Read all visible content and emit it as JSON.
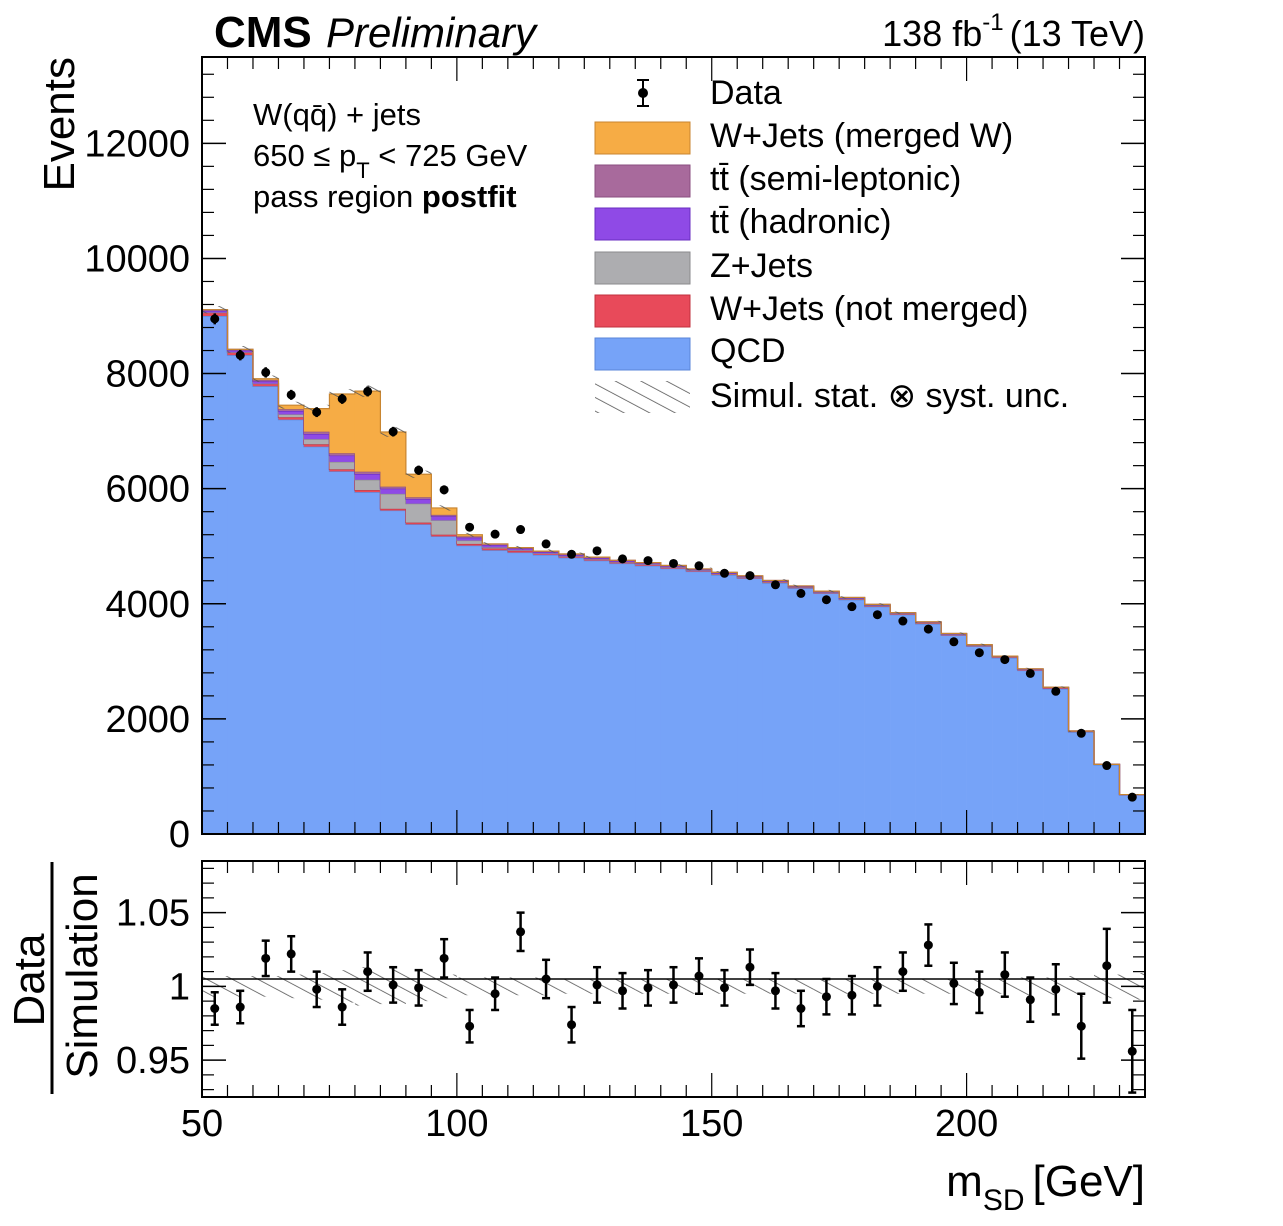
{
  "header": {
    "cms": "CMS",
    "preliminary": "Preliminary",
    "lumi_value": "138 fb",
    "lumi_exp": "-1",
    "energy": "(13 TeV)"
  },
  "info": {
    "line1": "W(qq̄) + jets",
    "line2_a": "650 ≤ p",
    "line2_sub": "T",
    "line2_b": " < 725 GeV",
    "line3_a": "pass region ",
    "line3_b": "postfit"
  },
  "legend": [
    {
      "key": "data",
      "label": "Data"
    },
    {
      "key": "wmerged",
      "label": "W+Jets (merged W)"
    },
    {
      "key": "ttsemi",
      "label": "tt̄ (semi-leptonic)"
    },
    {
      "key": "tthad",
      "label": "tt̄ (hadronic)"
    },
    {
      "key": "zjets",
      "label": "Z+Jets"
    },
    {
      "key": "wnot",
      "label": "W+Jets (not merged)"
    },
    {
      "key": "qcd",
      "label": "QCD"
    },
    {
      "key": "unc",
      "label": "Simul. stat. ⊗ syst. unc."
    }
  ],
  "colors": {
    "qcd": "#76a3f8",
    "wnot": "#e84a5a",
    "zjets": "#adadb0",
    "tthad": "#8f4ae6",
    "ttsemi": "#a86a9c",
    "wmerged": "#f6ac45"
  },
  "chart_data": [
    {
      "type": "bar",
      "title": "",
      "xlabel": "m_SD [GeV]",
      "ylabel": "Events",
      "xlim": [
        50,
        235
      ],
      "ylim": [
        0,
        13500
      ],
      "yticks": [
        0,
        2000,
        4000,
        6000,
        8000,
        10000,
        12000
      ],
      "ytick_labels": [
        "0",
        "2000",
        "4000",
        "6000",
        "8000",
        "10000",
        "12000"
      ],
      "bin_edges": [
        50,
        55,
        60,
        65,
        70,
        75,
        80,
        85,
        90,
        95,
        100,
        105,
        110,
        115,
        120,
        125,
        130,
        135,
        140,
        145,
        150,
        155,
        160,
        165,
        170,
        175,
        180,
        185,
        190,
        195,
        200,
        205,
        210,
        215,
        220,
        225,
        230,
        235
      ],
      "stack_order": [
        "qcd",
        "wnot",
        "zjets",
        "tthad",
        "ttsemi",
        "wmerged"
      ],
      "series": [
        {
          "name": "QCD",
          "key": "qcd",
          "values": [
            9000,
            8320,
            7780,
            7200,
            6730,
            6300,
            5940,
            5620,
            5380,
            5170,
            5010,
            4930,
            4890,
            4850,
            4800,
            4750,
            4700,
            4660,
            4610,
            4560,
            4500,
            4440,
            4360,
            4270,
            4180,
            4070,
            3950,
            3810,
            3650,
            3450,
            3260,
            3060,
            2840,
            2520,
            1770,
            1200,
            680
          ]
        },
        {
          "name": "W+Jets (not merged)",
          "key": "wnot",
          "values": [
            60,
            50,
            45,
            40,
            40,
            35,
            35,
            30,
            30,
            30,
            30,
            30,
            30,
            25,
            25,
            25,
            25,
            25,
            25,
            20,
            20,
            20,
            20,
            20,
            20,
            20,
            20,
            20,
            20,
            20,
            20,
            20,
            20,
            20,
            15,
            10,
            5
          ]
        },
        {
          "name": "Z+Jets",
          "key": "zjets",
          "values": [
            0,
            0,
            0,
            50,
            90,
            130,
            180,
            260,
            330,
            250,
            60,
            20,
            10,
            0,
            0,
            0,
            0,
            0,
            0,
            0,
            0,
            0,
            0,
            0,
            0,
            0,
            0,
            0,
            0,
            0,
            0,
            0,
            0,
            0,
            0,
            0,
            0
          ]
        },
        {
          "name": "tt̄ (hadronic)",
          "key": "tthad",
          "values": [
            30,
            30,
            40,
            60,
            90,
            110,
            100,
            90,
            80,
            70,
            50,
            40,
            30,
            25,
            25,
            20,
            20,
            20,
            20,
            15,
            15,
            15,
            15,
            10,
            10,
            10,
            10,
            10,
            10,
            10,
            5,
            5,
            5,
            5,
            5,
            0,
            0
          ]
        },
        {
          "name": "tt̄ (semi-leptonic)",
          "key": "ttsemi",
          "values": [
            20,
            20,
            25,
            30,
            40,
            40,
            40,
            35,
            30,
            25,
            20,
            20,
            15,
            15,
            15,
            15,
            10,
            10,
            10,
            10,
            10,
            10,
            10,
            10,
            10,
            10,
            10,
            5,
            5,
            5,
            5,
            5,
            5,
            5,
            0,
            0,
            0
          ]
        },
        {
          "name": "W+Jets (merged W)",
          "key": "wmerged",
          "values": [
            0,
            0,
            20,
            70,
            400,
            1030,
            1400,
            950,
            400,
            120,
            30,
            0,
            0,
            0,
            0,
            0,
            0,
            0,
            0,
            0,
            0,
            0,
            0,
            0,
            0,
            0,
            0,
            0,
            0,
            0,
            0,
            0,
            0,
            0,
            0,
            0,
            0
          ]
        }
      ],
      "data": {
        "name": "Data",
        "values": [
          8950,
          8320,
          8020,
          7630,
          7330,
          7560,
          7690,
          6990,
          6320,
          5980,
          5330,
          5210,
          5290,
          5040,
          4860,
          4920,
          4780,
          4750,
          4700,
          4660,
          4530,
          4490,
          4330,
          4180,
          4070,
          3950,
          3810,
          3700,
          3560,
          3340,
          3150,
          3030,
          2790,
          2480,
          1750,
          1190,
          640
        ],
        "errors": [
          95,
          91,
          90,
          87,
          86,
          87,
          88,
          84,
          80,
          77,
          73,
          72,
          73,
          71,
          70,
          70,
          69,
          69,
          69,
          68,
          67,
          67,
          66,
          65,
          64,
          63,
          62,
          61,
          60,
          58,
          56,
          55,
          53,
          50,
          42,
          35,
          25
        ]
      }
    },
    {
      "type": "scatter",
      "title": "",
      "xlabel": "m_SD [GeV]",
      "ylabel": "Data / Simulation",
      "xlim": [
        50,
        235
      ],
      "ylim": [
        0.925,
        1.085
      ],
      "xticks": [
        50,
        100,
        150,
        200
      ],
      "xtick_labels": [
        "50",
        "100",
        "150",
        "200"
      ],
      "yticks": [
        0.95,
        1.0,
        1.05
      ],
      "ytick_labels": [
        "0.95",
        "1",
        "1.05"
      ],
      "x": [
        52.5,
        57.5,
        62.5,
        67.5,
        72.5,
        77.5,
        82.5,
        87.5,
        92.5,
        97.5,
        102.5,
        107.5,
        112.5,
        117.5,
        122.5,
        127.5,
        132.5,
        137.5,
        142.5,
        147.5,
        152.5,
        157.5,
        162.5,
        167.5,
        172.5,
        177.5,
        182.5,
        187.5,
        192.5,
        197.5,
        202.5,
        207.5,
        212.5,
        217.5,
        222.5,
        227.5,
        232.5
      ],
      "ratio": [
        0.985,
        0.986,
        1.019,
        1.022,
        0.998,
        0.986,
        1.01,
        1.001,
        0.999,
        1.019,
        0.973,
        0.995,
        1.037,
        1.005,
        0.974,
        1.001,
        0.997,
        0.999,
        1.001,
        1.007,
        0.999,
        1.013,
        0.997,
        0.985,
        0.993,
        0.994,
        1.0,
        1.01,
        1.028,
        1.002,
        0.996,
        1.008,
        0.991,
        0.998,
        0.973,
        1.014,
        0.956
      ],
      "ratio_err": [
        0.011,
        0.011,
        0.012,
        0.012,
        0.012,
        0.012,
        0.013,
        0.012,
        0.012,
        0.013,
        0.011,
        0.011,
        0.013,
        0.013,
        0.012,
        0.012,
        0.012,
        0.012,
        0.012,
        0.012,
        0.012,
        0.012,
        0.012,
        0.012,
        0.012,
        0.013,
        0.013,
        0.013,
        0.014,
        0.014,
        0.014,
        0.015,
        0.015,
        0.017,
        0.022,
        0.025,
        0.028
      ],
      "unc_band": [
        0.007,
        0.007,
        0.007,
        0.008,
        0.009,
        0.011,
        0.013,
        0.012,
        0.01,
        0.008,
        0.006,
        0.006,
        0.006,
        0.006,
        0.005,
        0.005,
        0.005,
        0.005,
        0.005,
        0.005,
        0.005,
        0.005,
        0.005,
        0.005,
        0.005,
        0.005,
        0.005,
        0.005,
        0.005,
        0.005,
        0.005,
        0.005,
        0.006,
        0.006,
        0.007,
        0.008,
        0.009
      ]
    }
  ]
}
